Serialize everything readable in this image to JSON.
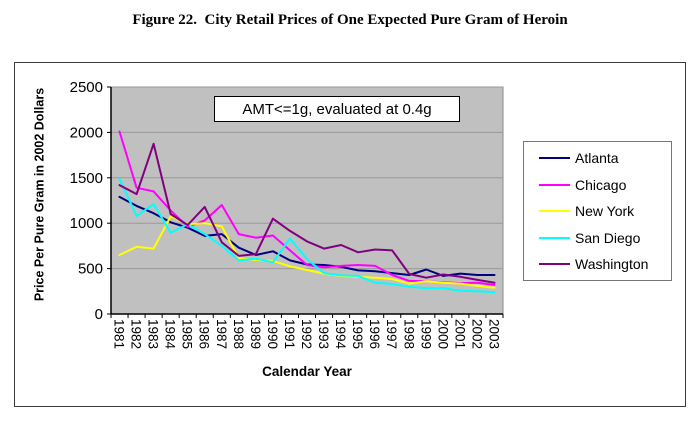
{
  "chart_data": {
    "type": "line",
    "title": "Figure 22.  City Retail Prices of One Expected Pure Gram of Heroin",
    "annotation": "AMT<=1g, evaluated at 0.4g",
    "xlabel": "Calendar Year",
    "ylabel": "Price Per Pure Gram in 2002 Dollars",
    "ylim": [
      0,
      2500
    ],
    "ytick_step": 500,
    "yticks": [
      0,
      500,
      1000,
      1500,
      2000,
      2500
    ],
    "grid": "horizontal-gridlines",
    "legend_position": "right",
    "plot_bg": "#c0c0c0",
    "gridline_color": "#999999",
    "categories": [
      1981,
      1982,
      1983,
      1984,
      1985,
      1986,
      1987,
      1988,
      1989,
      1990,
      1991,
      1992,
      1993,
      1994,
      1995,
      1996,
      1997,
      1998,
      1999,
      2000,
      2001,
      2002,
      2003
    ],
    "series": [
      {
        "name": "Atlanta",
        "color": "#000080",
        "values": [
          1290,
          1190,
          1110,
          1010,
          950,
          860,
          880,
          730,
          650,
          690,
          590,
          545,
          540,
          520,
          480,
          470,
          450,
          430,
          490,
          420,
          445,
          430,
          430
        ]
      },
      {
        "name": "Chicago",
        "color": "#ff00ff",
        "values": [
          2010,
          1390,
          1350,
          1140,
          960,
          1030,
          1200,
          880,
          840,
          865,
          700,
          540,
          515,
          530,
          540,
          530,
          430,
          365,
          360,
          350,
          340,
          345,
          320
        ]
      },
      {
        "name": "New York",
        "color": "#ffff00",
        "values": [
          650,
          740,
          720,
          1075,
          990,
          1000,
          965,
          615,
          595,
          585,
          525,
          485,
          445,
          420,
          410,
          400,
          385,
          335,
          360,
          345,
          335,
          310,
          290
        ]
      },
      {
        "name": "San Diego",
        "color": "#00ffff",
        "values": [
          1490,
          1080,
          1210,
          895,
          990,
          880,
          750,
          590,
          610,
          570,
          830,
          605,
          450,
          425,
          420,
          345,
          330,
          300,
          285,
          285,
          255,
          250,
          240
        ]
      },
      {
        "name": "Washington",
        "color": "#800080",
        "values": [
          1420,
          1320,
          1875,
          1100,
          980,
          1180,
          790,
          640,
          660,
          1050,
          915,
          800,
          720,
          760,
          680,
          710,
          700,
          440,
          400,
          435,
          410,
          375,
          345
        ]
      }
    ]
  }
}
